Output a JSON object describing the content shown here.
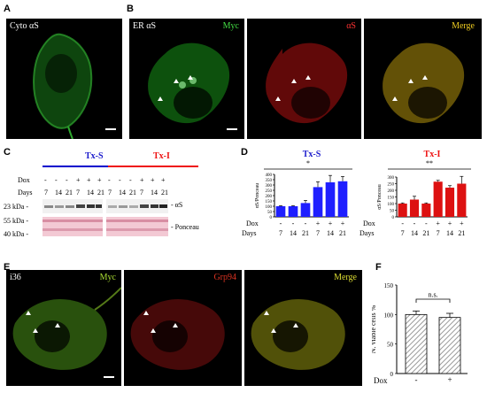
{
  "panel_letters": {
    "A": "A",
    "B": "B",
    "C": "C",
    "D": "D",
    "E": "E",
    "F": "F"
  },
  "panelA": {
    "label": "Cyto αS"
  },
  "panelB": {
    "er_label": "ER αS",
    "myc_label": "Myc",
    "as_label": "αS",
    "merge_label": "Merge"
  },
  "panelC": {
    "groupS": "Tx-S",
    "groupI": "Tx-I",
    "dox_label": "Dox",
    "days_label": "Days",
    "dox_values": [
      "-",
      "-",
      "-",
      "+",
      "+",
      "+"
    ],
    "days_values": [
      "7",
      "14",
      "21",
      "7",
      "14",
      "21"
    ],
    "mw_23": "23 kDa -",
    "mw_55": "55 kDa -",
    "mw_40": "40 kDa -",
    "band_as": "- αS",
    "band_ponceau": "- Ponceau"
  },
  "panelE": {
    "i36_label": "i36",
    "myc_label": "Myc",
    "grp_label": "Grp94",
    "merge_label": "Merge"
  },
  "colors": {
    "blue_bar": "#1f1fff",
    "red_bar": "#dd1111",
    "tx_s_line": "#0000cc",
    "tx_i_line": "#ee1111"
  },
  "chart_data": [
    {
      "type": "bar",
      "title": "Tx-S",
      "ylabel": "αS/Ponceau",
      "ylim": [
        0,
        400
      ],
      "yticks": [
        0,
        50,
        100,
        150,
        200,
        250,
        300,
        350,
        400
      ],
      "categories": [
        "7",
        "14",
        "21",
        "7",
        "14",
        "21"
      ],
      "dox": [
        "-",
        "-",
        "-",
        "+",
        "+",
        "+"
      ],
      "values": [
        100,
        100,
        130,
        280,
        325,
        335
      ],
      "errors": [
        5,
        5,
        25,
        50,
        65,
        45
      ],
      "significance": "*"
    },
    {
      "type": "bar",
      "title": "Tx-I",
      "ylabel": "αS/Ponceau",
      "ylim": [
        0,
        300
      ],
      "yticks": [
        0,
        50,
        100,
        150,
        200,
        250,
        300
      ],
      "categories": [
        "7",
        "14",
        "21",
        "7",
        "14",
        "21"
      ],
      "dox": [
        "-",
        "-",
        "-",
        "+",
        "+",
        "+"
      ],
      "values": [
        100,
        130,
        100,
        265,
        220,
        250
      ],
      "errors": [
        5,
        25,
        5,
        10,
        15,
        55
      ],
      "significance": "**"
    },
    {
      "type": "bar",
      "ylabel": "N. viable cells %",
      "ylim": [
        0,
        150
      ],
      "yticks": [
        0,
        50,
        100,
        150
      ],
      "categories": [
        "-",
        "+"
      ],
      "values": [
        100,
        95
      ],
      "errors": [
        6,
        7
      ],
      "xlabel": "Dox",
      "significance": "n.s."
    }
  ]
}
